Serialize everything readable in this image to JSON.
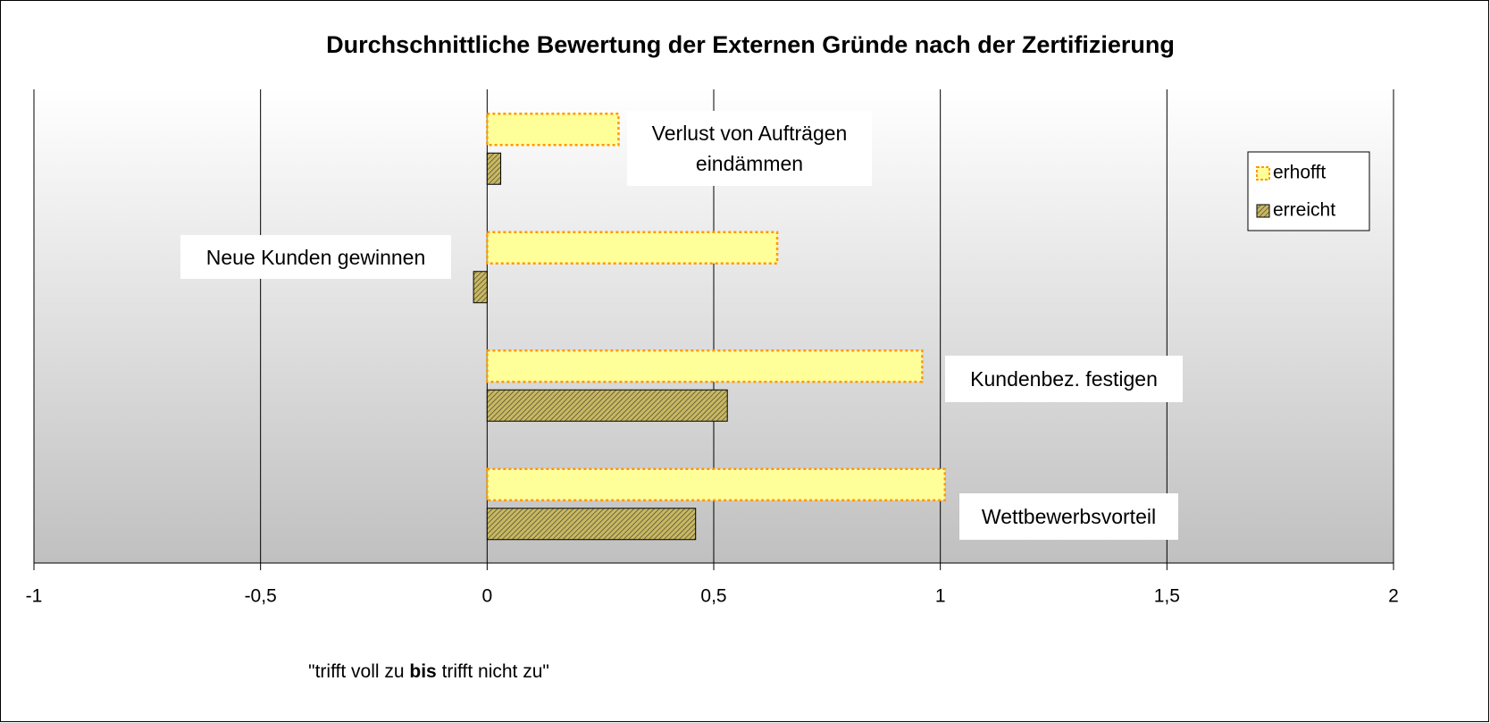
{
  "chart_data": {
    "type": "hbar",
    "title": "Durchschnittliche Bewertung der Externen Gründe nach der Zertifizierung",
    "categories": [
      "Verlust von Aufträgen eindämmen",
      "Neue Kunden gewinnen",
      "Kundenbez. festigen",
      "Wettbewerbsvorteil"
    ],
    "series": [
      {
        "name": "erhofft",
        "color": "#ffff99",
        "values": [
          0.29,
          0.64,
          0.96,
          1.01
        ]
      },
      {
        "name": "erreicht",
        "color": "#c8b860",
        "values": [
          0.03,
          -0.03,
          0.53,
          0.46
        ]
      }
    ],
    "x_label": [
      "\"trifft voll zu ",
      "bis",
      " trifft nicht zu\""
    ],
    "xlim": [
      -1,
      2
    ],
    "xticks": [
      -1,
      {
        "value": -0.5,
        "label": "-0,5"
      },
      0,
      {
        "value": 0.5,
        "label": "0,5"
      },
      1,
      {
        "value": 1.5,
        "label": "1,5"
      },
      2
    ],
    "grid": true,
    "legend": "right"
  }
}
